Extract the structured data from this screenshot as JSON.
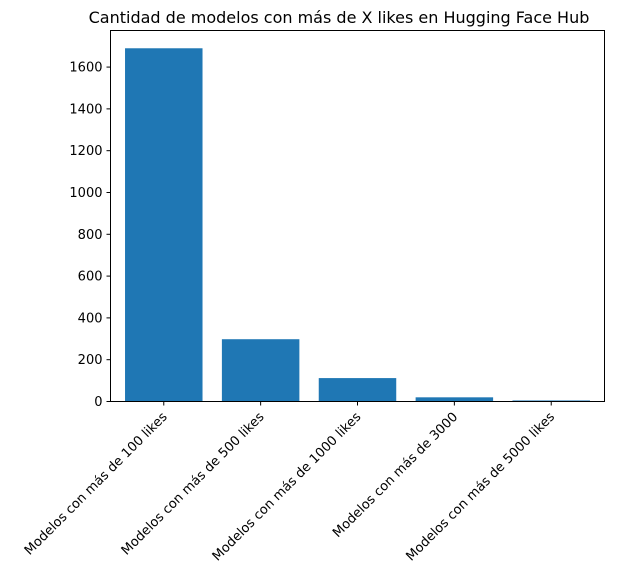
{
  "chart_data": {
    "type": "bar",
    "title": "Cantidad de modelos con más de X likes en Hugging Face Hub",
    "xlabel": "",
    "ylabel": "",
    "categories": [
      "Modelos con más de 100 likes",
      "Modelos con más de 500 likes",
      "Modelos con más de 1000 likes",
      "Modelos con más de 3000",
      "Modelos con más de 5000 likes"
    ],
    "values": [
      1690,
      298,
      112,
      20,
      5
    ],
    "ylim": [
      0,
      1775
    ],
    "yticks": [
      0,
      200,
      400,
      600,
      800,
      1000,
      1200,
      1400,
      1600
    ],
    "bar_color": "#1f77b4",
    "grid": false,
    "legend": "none"
  }
}
